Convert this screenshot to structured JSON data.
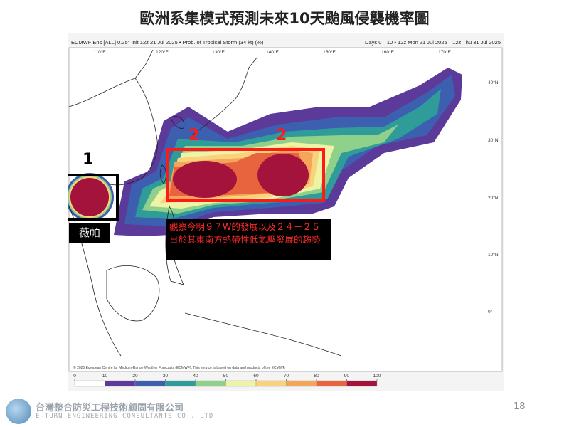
{
  "title": "歐洲系集模式預測未來10天颱風侵襲機率圖",
  "map": {
    "header_left": "ECMWF Ens [ALL] 0.25° Init 12z 21 Jul 2025 • Prob. of Tropical Storm (34 kt) (%)",
    "header_right": "Days 0—10 • 12z Mon 21 Jul 2025—12z Thu 31 Jul 2025",
    "lon_labels": [
      "110°E",
      "120°E",
      "130°E",
      "140°E",
      "150°E",
      "160°E",
      "170°E"
    ],
    "lat_labels": [
      "40°N",
      "30°N",
      "20°N",
      "10°N",
      "0°"
    ],
    "credit": "© 2025 European Centre for Medium-Range Weather Forecasts (ECMWF). This service is based on data and products of the ECMWF.",
    "colorbar": {
      "ticks": [
        0,
        10,
        20,
        30,
        40,
        50,
        60,
        70,
        80,
        90,
        100
      ],
      "colors": [
        "#ffffff",
        "#5b3a9a",
        "#3d5fb0",
        "#2f9c9a",
        "#8fd18a",
        "#eef3a6",
        "#f8d37c",
        "#f5a55a",
        "#e8643e",
        "#a3133c"
      ]
    }
  },
  "annotations": {
    "label_1": "1",
    "label_2a": "2",
    "label_2b": "2",
    "storm_name": "薇帕",
    "note": "觀察今明９７W的發展以及２４－２５日於其東南方熱帶性低氣壓發展的趨勢"
  },
  "footer": {
    "company": "台灣整合防災工程技術顧問有限公司",
    "company_en": "E-TURN ENGINEERING CONSULTANTS CO., LTD",
    "page": 18
  }
}
